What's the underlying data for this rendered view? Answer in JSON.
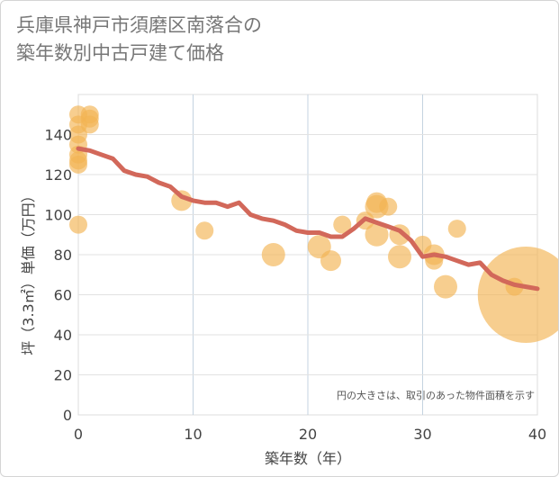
{
  "title_lines": [
    "兵庫県神戸市須磨区南落合の",
    "築年数別中古戸建て価格"
  ],
  "chart_data": {
    "type": "scatter",
    "title": "兵庫県神戸市須磨区南落合の 築年数別中古戸建て価格",
    "xlabel": "築年数（年）",
    "ylabel": "坪（3.3㎡）単価（万円）",
    "xlim": [
      0,
      40
    ],
    "ylim": [
      0,
      160
    ],
    "xticks": [
      0,
      10,
      20,
      30,
      40
    ],
    "yticks": [
      0,
      20,
      40,
      60,
      80,
      100,
      120,
      140
    ],
    "grid": true,
    "annotation": "円の大きさは、取引のあった物件面積を示す",
    "colors": {
      "bubble": "#f3b453",
      "line": "#d2685a"
    },
    "bubbles": [
      {
        "x": 0,
        "y": 150,
        "size": 4
      },
      {
        "x": 0,
        "y": 145,
        "size": 4
      },
      {
        "x": 0,
        "y": 140,
        "size": 4
      },
      {
        "x": 0,
        "y": 135,
        "size": 4
      },
      {
        "x": 0,
        "y": 130,
        "size": 4
      },
      {
        "x": 0,
        "y": 127,
        "size": 4
      },
      {
        "x": 0,
        "y": 125,
        "size": 4
      },
      {
        "x": 0,
        "y": 95,
        "size": 4
      },
      {
        "x": 1,
        "y": 150,
        "size": 4
      },
      {
        "x": 1,
        "y": 148,
        "size": 4
      },
      {
        "x": 1,
        "y": 145,
        "size": 4
      },
      {
        "x": 9,
        "y": 107,
        "size": 5
      },
      {
        "x": 11,
        "y": 92,
        "size": 4
      },
      {
        "x": 17,
        "y": 80,
        "size": 6
      },
      {
        "x": 21,
        "y": 84,
        "size": 6
      },
      {
        "x": 22,
        "y": 77,
        "size": 5
      },
      {
        "x": 23,
        "y": 95,
        "size": 4
      },
      {
        "x": 25,
        "y": 97,
        "size": 4
      },
      {
        "x": 26,
        "y": 106,
        "size": 5
      },
      {
        "x": 26,
        "y": 104,
        "size": 6
      },
      {
        "x": 26,
        "y": 90,
        "size": 6
      },
      {
        "x": 27,
        "y": 104,
        "size": 4
      },
      {
        "x": 28,
        "y": 90,
        "size": 5
      },
      {
        "x": 28,
        "y": 79,
        "size": 6
      },
      {
        "x": 30,
        "y": 85,
        "size": 4
      },
      {
        "x": 31,
        "y": 80,
        "size": 5
      },
      {
        "x": 31,
        "y": 77,
        "size": 4
      },
      {
        "x": 32,
        "y": 64,
        "size": 6
      },
      {
        "x": 33,
        "y": 93,
        "size": 4
      },
      {
        "x": 38,
        "y": 64,
        "size": 4
      },
      {
        "x": 39,
        "y": 60,
        "size": 33
      }
    ],
    "trend": {
      "x": [
        0,
        1,
        2,
        3,
        4,
        5,
        6,
        7,
        8,
        9,
        10,
        11,
        12,
        13,
        14,
        15,
        16,
        17,
        18,
        19,
        20,
        21,
        22,
        23,
        24,
        25,
        26,
        27,
        28,
        29,
        30,
        31,
        32,
        33,
        34,
        35,
        36,
        37,
        38,
        39,
        40
      ],
      "y": [
        133,
        132,
        130,
        128,
        122,
        120,
        119,
        116,
        114,
        109,
        107,
        106,
        106,
        104,
        106,
        100,
        98,
        97,
        95,
        92,
        91,
        91,
        89,
        89,
        93,
        98,
        96,
        94,
        92,
        87,
        79,
        80,
        79,
        77,
        75,
        76,
        70,
        67,
        65,
        64,
        63
      ]
    }
  }
}
